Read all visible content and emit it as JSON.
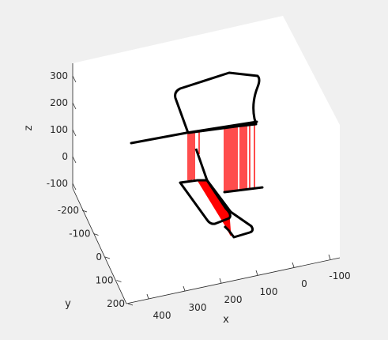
{
  "chart_data": {
    "type": "3d-line",
    "title": "",
    "xlabel": "x",
    "ylabel": "y",
    "zlabel": "z",
    "x_ticks": [
      "400",
      "300",
      "200",
      "100",
      "0",
      "-100"
    ],
    "y_ticks": [
      "-200",
      "-100",
      "0",
      "100",
      "200"
    ],
    "z_ticks": [
      "300",
      "200",
      "100",
      "0",
      "-100"
    ],
    "grid": false,
    "legend": "none",
    "colors": {
      "outline": "#000000",
      "hatch": "#ff0000",
      "axes_fill": "#ffffff",
      "figure_bg": "#f0f0f0"
    },
    "series": [
      {
        "color": "#000000",
        "role": "upper polygon outline"
      },
      {
        "color": "#000000",
        "role": "cutting line"
      },
      {
        "color": "#000000",
        "role": "lower polygon outline"
      },
      {
        "color": "#ff0000",
        "role": "vertical connecting lines"
      }
    ]
  }
}
